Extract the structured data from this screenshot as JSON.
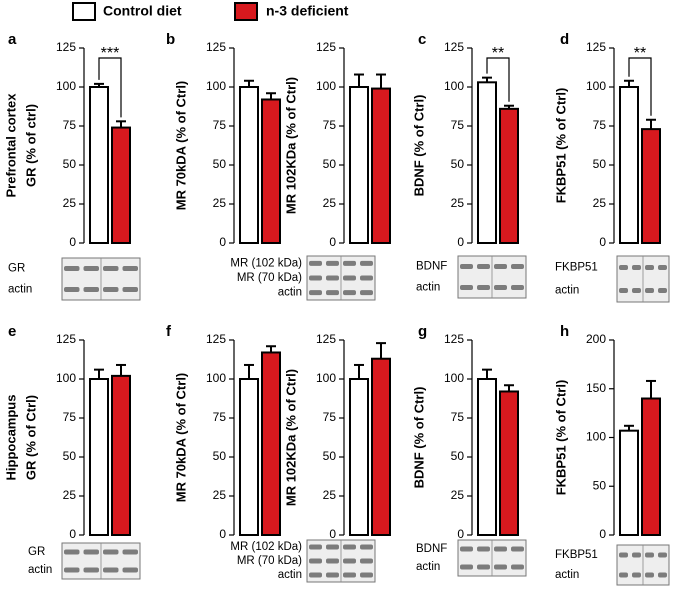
{
  "legend": {
    "entries": [
      {
        "name": "Control diet",
        "color": "#ffffff"
      },
      {
        "name": "n-3 deficient",
        "color": "#d7191e"
      }
    ]
  },
  "chart_data": [
    {
      "type": "bar",
      "panel_label": "a",
      "row_label": "Prefrontal cortex",
      "ylabel": "GR (% of ctrl)",
      "values": [
        100,
        74
      ],
      "errors": [
        2,
        4
      ],
      "annotation": "***",
      "ylim": [
        0,
        125
      ],
      "yticks": [
        0,
        25,
        50,
        75,
        100,
        125
      ],
      "blot_labels": [
        "GR",
        "actin"
      ]
    },
    {
      "type": "bar",
      "panel_label": "b",
      "ylabel": "MR 70kDA (% of Ctrl)",
      "values": [
        100,
        92
      ],
      "errors": [
        4,
        4
      ],
      "ylim": [
        0,
        125
      ],
      "yticks": [
        0,
        25,
        50,
        75,
        100,
        125
      ]
    },
    {
      "type": "bar",
      "ylabel": "MR 102KDa (% of Ctrl)",
      "values": [
        100,
        99
      ],
      "errors": [
        8,
        9
      ],
      "ylim": [
        0,
        125
      ],
      "yticks": [
        0,
        25,
        50,
        75,
        100,
        125
      ],
      "blot_labels": [
        "MR (102 kDa)",
        "MR (70 kDa)",
        "actin"
      ]
    },
    {
      "type": "bar",
      "panel_label": "c",
      "ylabel": "BDNF (% of Ctrl)",
      "values": [
        103,
        86
      ],
      "errors": [
        3,
        2
      ],
      "annotation": "**",
      "ylim": [
        0,
        125
      ],
      "yticks": [
        0,
        25,
        50,
        75,
        100,
        125
      ],
      "blot_labels": [
        "BDNF",
        "actin"
      ]
    },
    {
      "type": "bar",
      "panel_label": "d",
      "ylabel": "FKBP51 (% of Ctrl)",
      "values": [
        100,
        73
      ],
      "errors": [
        4,
        6
      ],
      "annotation": "**",
      "ylim": [
        0,
        125
      ],
      "yticks": [
        0,
        25,
        50,
        75,
        100,
        125
      ],
      "blot_labels": [
        "FKBP51",
        "actin"
      ]
    },
    {
      "type": "bar",
      "panel_label": "e",
      "row_label": "Hippocampus",
      "ylabel": "GR (% of Ctrl)",
      "values": [
        100,
        102
      ],
      "errors": [
        6,
        7
      ],
      "ylim": [
        0,
        125
      ],
      "yticks": [
        0,
        25,
        50,
        75,
        100,
        125
      ],
      "blot_labels": [
        "GR",
        "actin"
      ]
    },
    {
      "type": "bar",
      "panel_label": "f",
      "ylabel": "MR 70kDA (% of Ctrl)",
      "values": [
        100,
        117
      ],
      "errors": [
        9,
        4
      ],
      "ylim": [
        0,
        125
      ],
      "yticks": [
        0,
        25,
        50,
        75,
        100,
        125
      ]
    },
    {
      "type": "bar",
      "ylabel": "MR 102KDa (% of Ctrl)",
      "values": [
        100,
        113
      ],
      "errors": [
        9,
        10
      ],
      "ylim": [
        0,
        125
      ],
      "yticks": [
        0,
        25,
        50,
        75,
        100,
        125
      ],
      "blot_labels": [
        "MR (102 kDa)",
        "MR (70 kDa)",
        "actin"
      ]
    },
    {
      "type": "bar",
      "panel_label": "g",
      "ylabel": "BDNF (% of Ctrl)",
      "values": [
        100,
        92
      ],
      "errors": [
        6,
        4
      ],
      "ylim": [
        0,
        125
      ],
      "yticks": [
        0,
        25,
        50,
        75,
        100,
        125
      ],
      "blot_labels": [
        "BDNF",
        "actin"
      ]
    },
    {
      "type": "bar",
      "panel_label": "h",
      "ylabel": "FKBP51 (% of Ctrl)",
      "values": [
        107,
        140
      ],
      "errors": [
        5,
        18
      ],
      "ylim": [
        0,
        200
      ],
      "yticks": [
        0,
        50,
        100,
        150,
        200
      ],
      "blot_labels": [
        "FKBP51",
        "actin"
      ]
    }
  ]
}
